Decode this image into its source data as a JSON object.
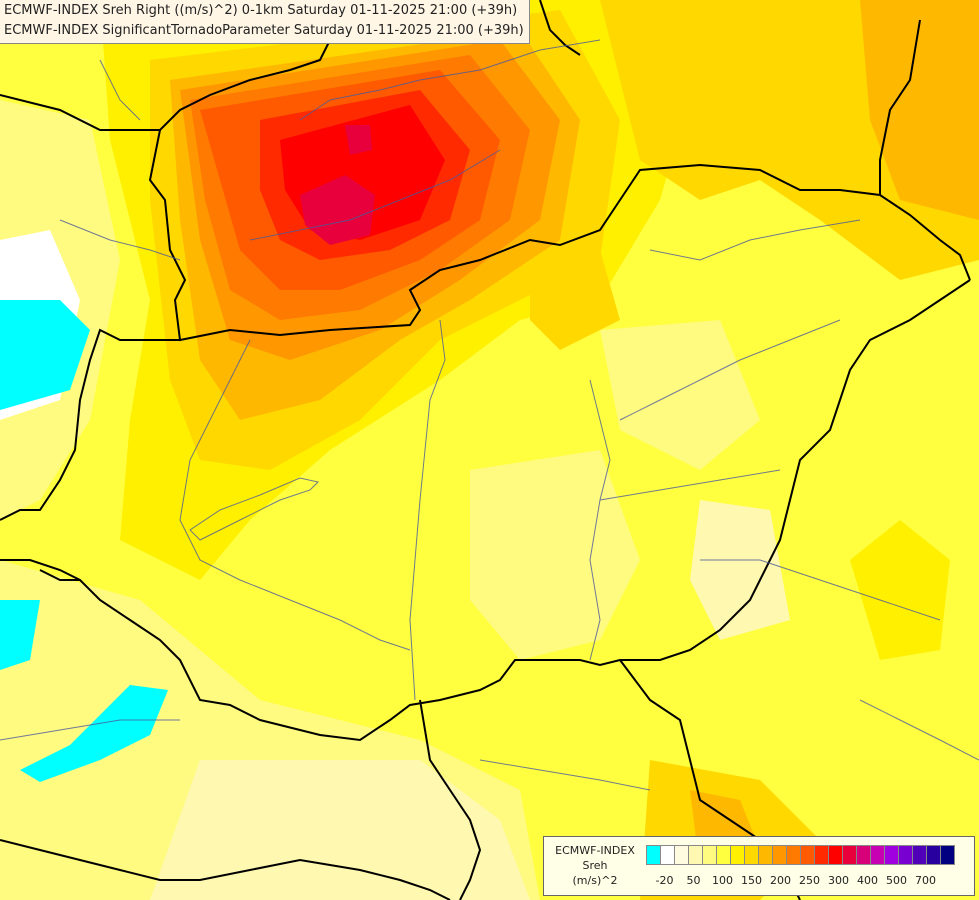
{
  "titles": [
    "ECMWF-INDEX Sreh Right ((m/s)^2) 0-1km Saturday 01-11-2025 21:00 (+39h)",
    "ECMWF-INDEX SignificantTornadoParameter Saturday 01-11-2025 21:00 (+39h)"
  ],
  "legend": {
    "line1": "ECMWF-INDEX",
    "line2": "Sreh",
    "line3": "(m/s)^2",
    "colors": [
      "#00ffff",
      "#ffffff",
      "#fffbe0",
      "#fff8b0",
      "#fffa80",
      "#ffff40",
      "#fff000",
      "#ffd800",
      "#ffb800",
      "#ff9800",
      "#ff7a00",
      "#ff5a00",
      "#ff2a00",
      "#ff0000",
      "#e8003c",
      "#d80078",
      "#c800b4",
      "#a000e0",
      "#7800d0",
      "#5000b8",
      "#2800a0",
      "#000080"
    ],
    "ticks": [
      "-20",
      "50",
      "100",
      "150",
      "200",
      "250",
      "300",
      "400",
      "500",
      "700"
    ]
  }
}
